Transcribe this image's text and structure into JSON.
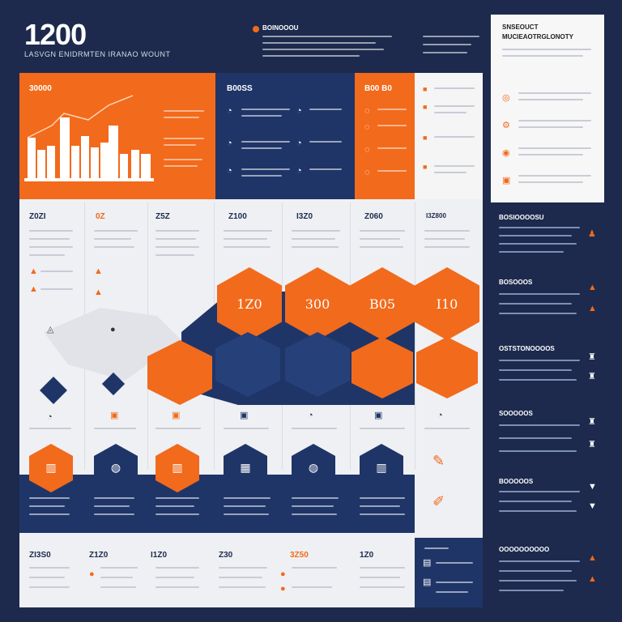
{
  "header": {
    "number": "1200",
    "subtitle": "LASVGN ENIDRMTEN IRANAO WOUNT"
  },
  "top_center": {
    "label": "BOINOOOU"
  },
  "right_card": {
    "title": "SNSEOUCT MUCIEAOTRGLONOTY"
  },
  "top_panels": {
    "orange_left_title": "30000",
    "navy_title": "B00SS",
    "orange_mid_title": "B00 B0"
  },
  "top_row_labels": [
    "Z0ZI",
    "0Z",
    "Z5Z",
    "Z100",
    "I3Z0",
    "Z060",
    "I3Z800"
  ],
  "orange_hexes": [
    "1Z0",
    "300",
    "B05",
    "I10"
  ],
  "bottom_row_labels": [
    "ZI3S0",
    "Z1Z0",
    "I1Z0",
    "Z30",
    "3Z50",
    "1Z0"
  ],
  "right_column_titles": [
    "BOSIOOOOSU",
    "BOSOOOS",
    "OSTSTONOOOOS",
    "SOOOOOS",
    "BOOOOOS",
    "OOOOOOOOOO"
  ],
  "colors": {
    "navy": "#1d2a4d",
    "panel_navy": "#1f3568",
    "orange": "#f26a1b",
    "light": "#eef0f3"
  }
}
